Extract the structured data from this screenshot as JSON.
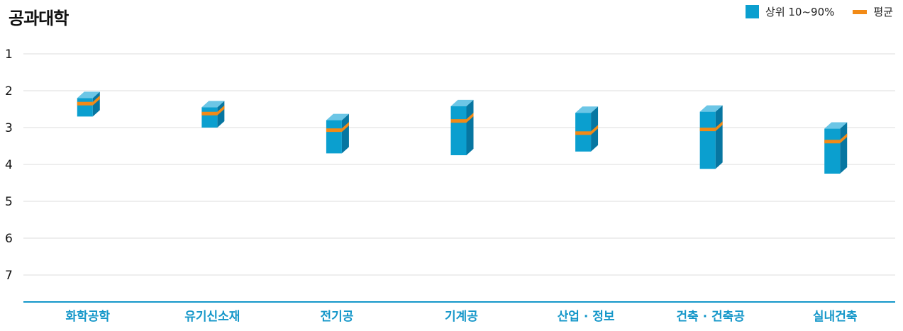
{
  "title": "공과대학",
  "legend": {
    "range_label": "상위 10~90%",
    "avg_label": "평균"
  },
  "colors": {
    "bar_front": "#0b9fcf",
    "bar_top": "#6cc6e6",
    "bar_side": "#0776a1",
    "avg_line": "#f28a16",
    "axis": "#1597c9",
    "grid": "#dddddd"
  },
  "chart_data": {
    "type": "bar",
    "categories": [
      "화학공학",
      "유기신소재",
      "전기공",
      "기계공",
      "산업 · 정보",
      "건축 · 건축공",
      "실내건축"
    ],
    "series": [
      {
        "name": "상위 10~90%",
        "low": [
          2.2,
          2.45,
          2.8,
          2.42,
          2.6,
          2.57,
          3.03
        ],
        "high": [
          2.7,
          3.0,
          3.7,
          3.75,
          3.65,
          4.12,
          4.25
        ]
      },
      {
        "name": "평균",
        "values": [
          2.35,
          2.62,
          3.07,
          2.82,
          3.15,
          3.05,
          3.38
        ]
      }
    ],
    "yticks": [
      "1",
      "2",
      "3",
      "4",
      "5",
      "6",
      "7"
    ],
    "ylim": [
      1,
      7.8
    ],
    "y_inverted": true,
    "grid": true,
    "legend_position": "top-right"
  }
}
